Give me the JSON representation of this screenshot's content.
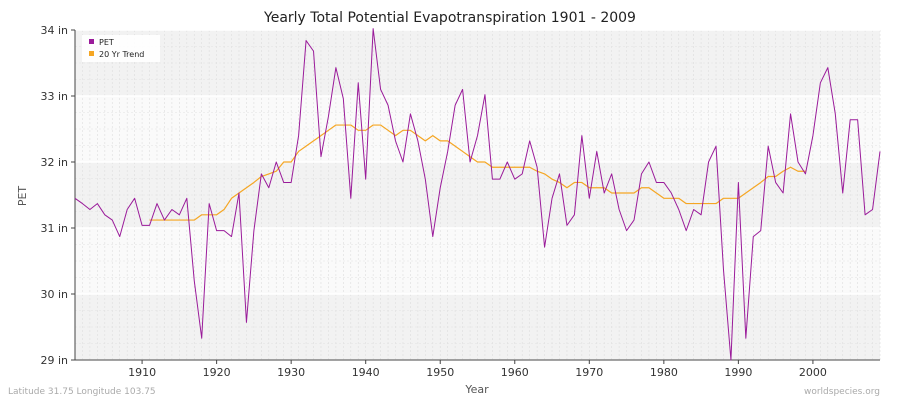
{
  "chart_data": {
    "type": "line",
    "title": "Yearly Total Potential Evapotranspiration 1901 - 2009",
    "xlabel": "Year",
    "ylabel": "PET",
    "xlim": [
      1901,
      2009
    ],
    "ylim": [
      29,
      34
    ],
    "y_unit": "in",
    "x_ticks": [
      1910,
      1920,
      1930,
      1940,
      1950,
      1960,
      1970,
      1980,
      1990,
      2000
    ],
    "y_ticks": [
      29,
      30,
      31,
      32,
      33,
      34
    ],
    "y_tick_labels": [
      "29 in",
      "30 in",
      "31 in",
      "32 in",
      "33 in",
      "34 in"
    ],
    "legend": {
      "position": "top-left",
      "entries": [
        "PET",
        "20 Yr Trend"
      ]
    },
    "grid": true,
    "colors": {
      "PET": "#9a1b9a",
      "20 Yr Trend": "#f5a623"
    },
    "series": [
      {
        "name": "PET",
        "x": [
          1901,
          1902,
          1903,
          1904,
          1905,
          1906,
          1907,
          1908,
          1909,
          1910,
          1911,
          1912,
          1913,
          1914,
          1915,
          1916,
          1917,
          1918,
          1919,
          1920,
          1921,
          1922,
          1923,
          1924,
          1925,
          1926,
          1927,
          1928,
          1929,
          1930,
          1931,
          1932,
          1933,
          1934,
          1935,
          1936,
          1937,
          1938,
          1939,
          1940,
          1941,
          1942,
          1943,
          1944,
          1945,
          1946,
          1947,
          1948,
          1949,
          1950,
          1951,
          1952,
          1953,
          1954,
          1955,
          1956,
          1957,
          1958,
          1959,
          1960,
          1961,
          1962,
          1963,
          1964,
          1965,
          1966,
          1967,
          1968,
          1969,
          1970,
          1971,
          1972,
          1973,
          1974,
          1975,
          1976,
          1977,
          1978,
          1979,
          1980,
          1981,
          1982,
          1983,
          1984,
          1985,
          1986,
          1987,
          1988,
          1989,
          1990,
          1991,
          1992,
          1993,
          1994,
          1995,
          1996,
          1997,
          1998,
          1999,
          2000,
          2001,
          2002,
          2003,
          2004,
          2005,
          2006,
          2007,
          2008,
          2009
        ],
        "values": [
          31.45,
          31.37,
          31.28,
          31.37,
          31.2,
          31.12,
          30.87,
          31.28,
          31.45,
          31.04,
          31.04,
          31.37,
          31.12,
          31.28,
          31.2,
          31.45,
          30.2,
          29.33,
          31.37,
          30.96,
          30.96,
          30.87,
          31.53,
          29.57,
          30.96,
          31.82,
          31.61,
          32.0,
          31.69,
          31.69,
          32.4,
          33.84,
          33.68,
          32.08,
          32.69,
          33.43,
          32.96,
          31.45,
          33.2,
          31.74,
          34.02,
          33.1,
          32.86,
          32.32,
          32.0,
          32.73,
          32.32,
          31.74,
          30.87,
          31.61,
          32.16,
          32.86,
          33.1,
          32.0,
          32.4,
          33.02,
          31.74,
          31.74,
          32.0,
          31.74,
          31.82,
          32.32,
          31.92,
          30.71,
          31.45,
          31.82,
          31.04,
          31.2,
          32.4,
          31.45,
          32.16,
          31.53,
          31.82,
          31.28,
          30.96,
          31.12,
          31.82,
          32.0,
          31.69,
          31.69,
          31.53,
          31.28,
          30.96,
          31.28,
          31.2,
          32.0,
          32.24,
          30.37,
          29.0,
          31.69,
          29.33,
          30.87,
          30.96,
          32.24,
          31.69,
          31.53,
          32.73,
          32.0,
          31.82,
          32.4,
          33.2,
          33.43,
          32.73,
          31.53,
          32.64,
          32.64,
          31.2,
          31.28,
          32.16
        ]
      },
      {
        "name": "20 Yr Trend",
        "x": [
          1911,
          1912,
          1913,
          1914,
          1915,
          1916,
          1917,
          1918,
          1919,
          1920,
          1921,
          1922,
          1923,
          1924,
          1925,
          1926,
          1927,
          1928,
          1929,
          1930,
          1931,
          1932,
          1933,
          1934,
          1935,
          1936,
          1937,
          1938,
          1939,
          1940,
          1941,
          1942,
          1943,
          1944,
          1945,
          1946,
          1947,
          1948,
          1949,
          1950,
          1951,
          1952,
          1953,
          1954,
          1955,
          1956,
          1957,
          1958,
          1959,
          1960,
          1961,
          1962,
          1963,
          1964,
          1965,
          1966,
          1967,
          1968,
          1969,
          1970,
          1971,
          1972,
          1973,
          1974,
          1975,
          1976,
          1977,
          1978,
          1979,
          1980,
          1981,
          1982,
          1983,
          1984,
          1985,
          1986,
          1987,
          1988,
          1989,
          1990,
          1991,
          1992,
          1993,
          1994,
          1995,
          1996,
          1997,
          1998,
          1999
        ],
        "values": [
          31.12,
          31.12,
          31.12,
          31.12,
          31.12,
          31.12,
          31.12,
          31.2,
          31.2,
          31.2,
          31.28,
          31.45,
          31.53,
          31.61,
          31.69,
          31.78,
          31.82,
          31.86,
          32.0,
          32.0,
          32.16,
          32.24,
          32.32,
          32.4,
          32.48,
          32.56,
          32.56,
          32.56,
          32.48,
          32.48,
          32.56,
          32.56,
          32.48,
          32.4,
          32.48,
          32.48,
          32.4,
          32.32,
          32.4,
          32.32,
          32.32,
          32.24,
          32.16,
          32.08,
          32.0,
          32.0,
          31.92,
          31.92,
          31.92,
          31.92,
          31.92,
          31.92,
          31.86,
          31.82,
          31.74,
          31.69,
          31.61,
          31.69,
          31.69,
          31.61,
          31.61,
          31.61,
          31.53,
          31.53,
          31.53,
          31.53,
          31.61,
          31.61,
          31.53,
          31.45,
          31.45,
          31.45,
          31.37,
          31.37,
          31.37,
          31.37,
          31.37,
          31.45,
          31.45,
          31.45,
          31.53,
          31.61,
          31.69,
          31.78,
          31.78,
          31.86,
          31.92,
          31.86,
          31.86
        ]
      }
    ]
  },
  "footer": {
    "left": "Latitude 31.75 Longitude 103.75",
    "right": "worldspecies.org"
  }
}
